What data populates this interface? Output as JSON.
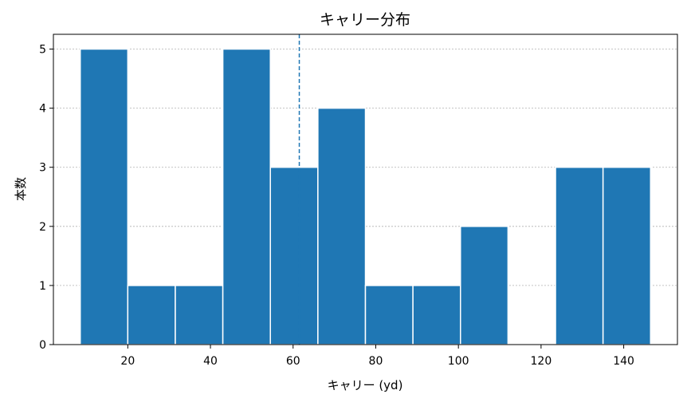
{
  "chart_data": {
    "type": "bar",
    "title": "キャリー分布",
    "xlabel": "キャリー (yd)",
    "ylabel": "本数",
    "xlim": [
      2,
      153
    ],
    "ylim": [
      0,
      5.25
    ],
    "xticks": [
      20,
      40,
      60,
      80,
      100,
      120,
      140
    ],
    "yticks": [
      0,
      1,
      2,
      3,
      4,
      5
    ],
    "grid": "y",
    "bins": [
      {
        "start": 8.5,
        "end": 20.0,
        "count": 5
      },
      {
        "start": 20.0,
        "end": 31.5,
        "count": 1
      },
      {
        "start": 31.5,
        "end": 43.0,
        "count": 1
      },
      {
        "start": 43.0,
        "end": 54.5,
        "count": 5
      },
      {
        "start": 54.5,
        "end": 66.0,
        "count": 3
      },
      {
        "start": 66.0,
        "end": 77.5,
        "count": 4
      },
      {
        "start": 77.5,
        "end": 89.0,
        "count": 1
      },
      {
        "start": 89.0,
        "end": 100.5,
        "count": 1
      },
      {
        "start": 100.5,
        "end": 112.0,
        "count": 2
      },
      {
        "start": 112.0,
        "end": 123.5,
        "count": 0
      },
      {
        "start": 123.5,
        "end": 135.0,
        "count": 3
      },
      {
        "start": 135.0,
        "end": 146.5,
        "count": 3
      }
    ],
    "reference_line": {
      "x": 61.5,
      "style": "dashed"
    },
    "colors": {
      "bar": "#1f77b4",
      "reference_line": "#1f77b4"
    }
  }
}
